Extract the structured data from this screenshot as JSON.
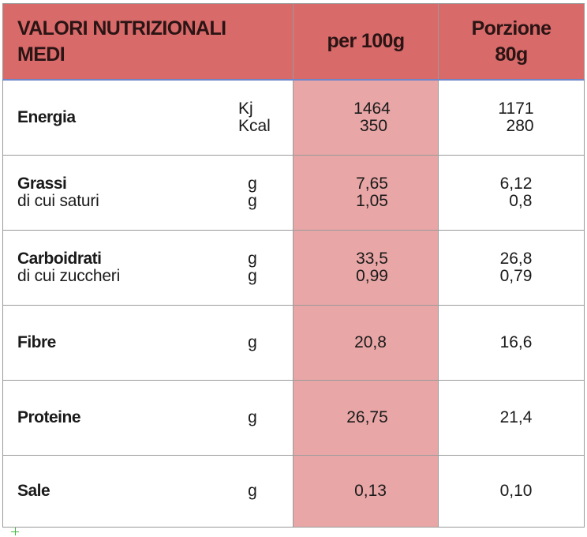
{
  "header": {
    "title_line1": "VALORI NUTRIZIONALI",
    "title_line2": "MEDI",
    "col_100g": "per 100g",
    "col_portion_line1": "Porzione",
    "col_portion_line2": "80g"
  },
  "rows": [
    {
      "name": "Energia",
      "sub": "",
      "unit1": "Kj",
      "unit2": "Kcal",
      "v100_1": "1464",
      "v100_2": "350",
      "vp_1": "1171",
      "vp_2": "280"
    },
    {
      "name": "Grassi",
      "sub": "di cui saturi",
      "unit1": "g",
      "unit2": "g",
      "v100_1": "7,65",
      "v100_2": "1,05",
      "vp_1": "6,12",
      "vp_2": "0,8"
    },
    {
      "name": "Carboidrati",
      "sub": "di cui zuccheri",
      "unit1": "g",
      "unit2": "g",
      "v100_1": "33,5",
      "v100_2": "0,99",
      "vp_1": "26,8",
      "vp_2": "0,79"
    },
    {
      "name": "Fibre",
      "unit1": "g",
      "v100_1": "20,8",
      "vp_1": "16,6"
    },
    {
      "name": "Proteine",
      "unit1": "g",
      "v100_1": "26,75",
      "vp_1": "21,4"
    },
    {
      "name": "Sale",
      "unit1": "g",
      "v100_1": "0,13",
      "vp_1": "0,10"
    }
  ]
}
